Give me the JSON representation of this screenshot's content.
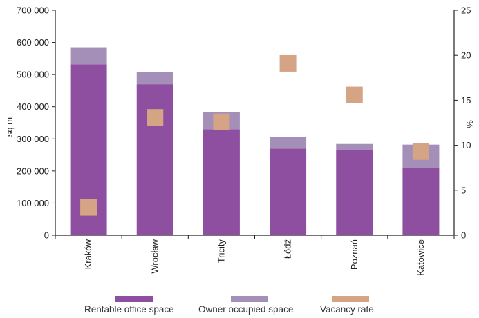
{
  "chart_data": {
    "type": "bar",
    "stacked": true,
    "categories": [
      "Kraków",
      "Wrocław",
      "Tricity",
      "Łódź",
      "Poznań",
      "Katowice"
    ],
    "series": [
      {
        "name": "Rentable office space",
        "axis": "left",
        "color": "#8e4fa0",
        "values": [
          532000,
          470000,
          330000,
          270000,
          265000,
          210000
        ]
      },
      {
        "name": "Owner occupied space",
        "axis": "left",
        "color": "#a48fb8",
        "values": [
          53000,
          37000,
          54000,
          35000,
          19000,
          72000
        ]
      },
      {
        "name": "Vacancy rate",
        "axis": "right",
        "type": "marker",
        "color": "#d4a484",
        "values": [
          3.1,
          13.1,
          12.6,
          19.1,
          15.6,
          9.3
        ]
      }
    ],
    "ylabel": "sq m",
    "y2label": "%",
    "ylim": [
      0,
      700000
    ],
    "y2lim": [
      0,
      25
    ],
    "yticks": [
      "0",
      "100 000",
      "200 000",
      "300 000",
      "400 000",
      "500 000",
      "600 000",
      "700 000"
    ],
    "y2ticks": [
      "0",
      "5",
      "10",
      "15",
      "20",
      "25"
    ],
    "grid": false,
    "legend_position": "bottom"
  }
}
